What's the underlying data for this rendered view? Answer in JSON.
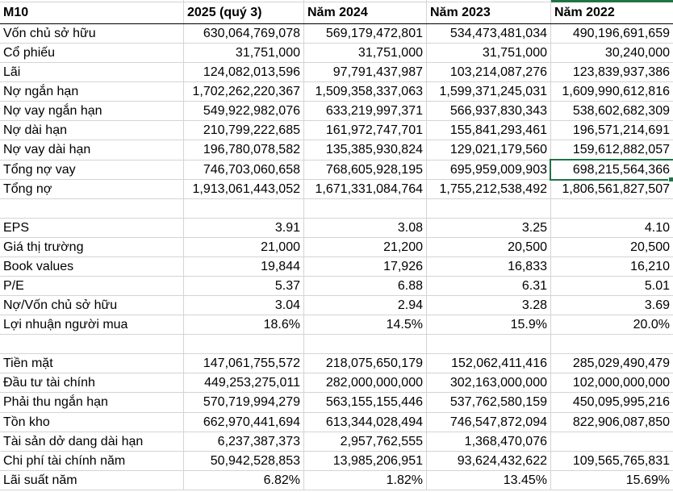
{
  "columns": [
    "M10",
    "2025 (quý 3)",
    "Năm 2024",
    "Năm 2023",
    "Năm 2022"
  ],
  "rows": [
    {
      "label": "Vốn chủ sở hữu",
      "values": [
        "630,064,769,078",
        "569,179,472,801",
        "534,473,481,034",
        "490,196,691,659"
      ]
    },
    {
      "label": "Cổ phiếu",
      "values": [
        "31,751,000",
        "31,751,000",
        "31,751,000",
        "30,240,000"
      ]
    },
    {
      "label": "Lãi",
      "values": [
        "124,082,013,596",
        "97,791,437,987",
        "103,214,087,276",
        "123,839,937,386"
      ]
    },
    {
      "label": "Nợ ngắn hạn",
      "values": [
        "1,702,262,220,367",
        "1,509,358,337,063",
        "1,599,371,245,031",
        "1,609,990,612,816"
      ]
    },
    {
      "label": "Nợ vay ngắn hạn",
      "values": [
        "549,922,982,076",
        "633,219,997,371",
        "566,937,830,343",
        "538,602,682,309"
      ]
    },
    {
      "label": "Nợ dài hạn",
      "values": [
        "210,799,222,685",
        "161,972,747,701",
        "155,841,293,461",
        "196,571,214,691"
      ]
    },
    {
      "label": "Nợ vay dài hạn",
      "values": [
        "196,780,078,582",
        "135,385,930,824",
        "129,021,179,560",
        "159,612,882,057"
      ]
    },
    {
      "label": "Tổng nợ vay",
      "values": [
        "746,703,060,658",
        "768,605,928,195",
        "695,959,009,903",
        "698,215,564,366"
      ]
    },
    {
      "label": "Tổng nợ",
      "values": [
        "1,913,061,443,052",
        "1,671,331,084,764",
        "1,755,212,538,492",
        "1,806,561,827,507"
      ]
    },
    {
      "label": "",
      "values": [
        "",
        "",
        "",
        ""
      ]
    },
    {
      "label": "EPS",
      "values": [
        "3.91",
        "3.08",
        "3.25",
        "4.10"
      ]
    },
    {
      "label": "Giá thị trường",
      "values": [
        "21,000",
        "21,200",
        "20,500",
        "20,500"
      ]
    },
    {
      "label": "Book values",
      "values": [
        "19,844",
        "17,926",
        "16,833",
        "16,210"
      ]
    },
    {
      "label": "P/E",
      "values": [
        "5.37",
        "6.88",
        "6.31",
        "5.01"
      ]
    },
    {
      "label": "Nợ/Vốn chủ sở hữu",
      "values": [
        "3.04",
        "2.94",
        "3.28",
        "3.69"
      ]
    },
    {
      "label": "Lợi nhuận người mua",
      "values": [
        "18.6%",
        "14.5%",
        "15.9%",
        "20.0%"
      ]
    },
    {
      "label": "",
      "values": [
        "",
        "",
        "",
        ""
      ]
    },
    {
      "label": "Tiền mặt",
      "values": [
        "147,061,755,572",
        "218,075,650,179",
        "152,062,411,416",
        "285,029,490,479"
      ]
    },
    {
      "label": "Đầu tư tài chính",
      "values": [
        "449,253,275,011",
        "282,000,000,000",
        "302,163,000,000",
        "102,000,000,000"
      ]
    },
    {
      "label": "Phải thu ngắn hạn",
      "values": [
        "570,719,994,279",
        "563,155,155,446",
        "537,762,580,159",
        "450,095,995,216"
      ]
    },
    {
      "label": "Tồn kho",
      "values": [
        "662,970,441,694",
        "613,344,028,494",
        "746,547,872,094",
        "822,906,087,850"
      ]
    },
    {
      "label": "Tài sản dở dang dài hạn",
      "values": [
        "6,237,387,373",
        "2,957,762,555",
        "1,368,470,076",
        ""
      ]
    },
    {
      "label": "Chi phí tài chính năm",
      "values": [
        "50,942,528,853",
        "13,985,206,951",
        "93,624,432,622",
        "109,565,765,831"
      ]
    },
    {
      "label": "Lãi suất năm",
      "values": [
        "6.82%",
        "1.82%",
        "13.45%",
        "15.69%"
      ]
    }
  ],
  "selection": {
    "row_index": 7,
    "col_index": 3,
    "row_label": "Tổng nợ vay",
    "column_label": "Năm 2022",
    "value": "698,215,564,366"
  },
  "colors": {
    "selection_green": "#217346",
    "gridline": "#d4d4d4",
    "header_border": "#000000",
    "text": "#000000",
    "background": "#ffffff"
  }
}
